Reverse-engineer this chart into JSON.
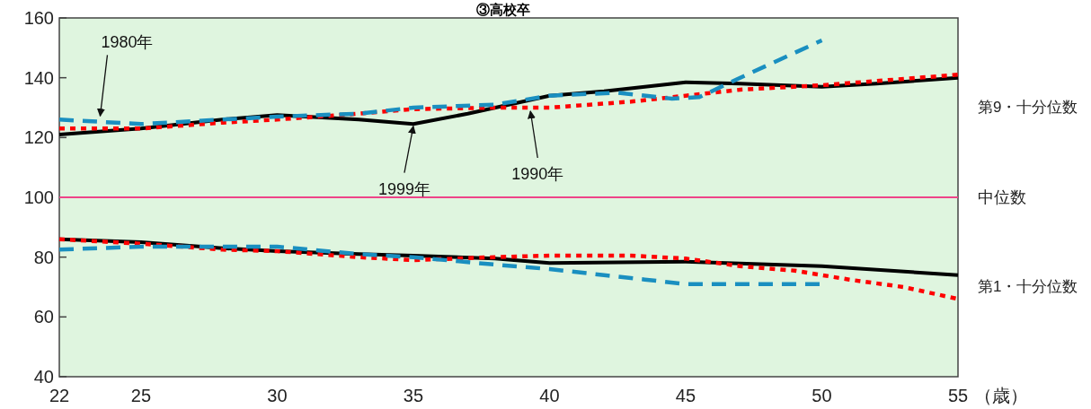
{
  "chart_data": {
    "type": "line",
    "title": "③高校卒",
    "xlabel": "（歳）",
    "xlim": [
      22,
      55
    ],
    "xticks": [
      22,
      25,
      30,
      35,
      40,
      45,
      50,
      55
    ],
    "ylim": [
      40,
      160
    ],
    "yticks": [
      40,
      60,
      80,
      100,
      120,
      140,
      160
    ],
    "series": [
      {
        "color": "#000000",
        "line_style": "solid",
        "x": [
          22,
          25,
          28,
          30,
          33,
          35,
          37,
          40,
          42,
          45,
          47,
          50,
          52,
          55
        ],
        "values": [
          121,
          123,
          126,
          127.5,
          126,
          124.5,
          128,
          134,
          135.5,
          138.5,
          138,
          137,
          138,
          140
        ]
      },
      {
        "color": "#ff0000",
        "line_style": "dotted",
        "x": [
          22,
          25,
          28,
          30,
          33,
          35,
          38,
          40,
          43,
          45,
          47,
          50,
          55
        ],
        "values": [
          123,
          123,
          125,
          126,
          128,
          129.5,
          130,
          130,
          132,
          134,
          136,
          137.5,
          141
        ]
      },
      {
        "color": "#1a8fc0",
        "line_style": "dashed",
        "x": [
          22,
          25,
          28,
          30,
          33,
          35,
          38,
          40,
          42.5,
          44.5,
          45.5,
          47,
          50
        ],
        "values": [
          126,
          124.5,
          126,
          127,
          128,
          130,
          131,
          134,
          135,
          133,
          133.5,
          140,
          152.5
        ]
      },
      {
        "color": "#000000",
        "line_style": "solid",
        "x": [
          22,
          25,
          28,
          30,
          33,
          35,
          38,
          40,
          45,
          50,
          55
        ],
        "values": [
          86,
          85,
          83,
          82,
          81,
          80.5,
          79.5,
          78,
          78.5,
          77,
          74
        ]
      },
      {
        "color": "#ff0000",
        "line_style": "dotted",
        "x": [
          22,
          25,
          28,
          30,
          33,
          35,
          38,
          40,
          43,
          45,
          47,
          49,
          51,
          53,
          55
        ],
        "values": [
          86,
          84.5,
          82.5,
          82,
          80,
          79,
          80,
          80.5,
          80.5,
          79.5,
          77,
          75.5,
          72.5,
          70,
          66
        ]
      },
      {
        "color": "#1a8fc0",
        "line_style": "dashed",
        "x": [
          22,
          25,
          28,
          30,
          33,
          35,
          38,
          40,
          42,
          43.5,
          45,
          50
        ],
        "values": [
          82.5,
          83.5,
          83.5,
          83.5,
          81,
          80,
          77.5,
          76,
          74,
          72.5,
          71,
          71
        ]
      }
    ],
    "ref_lines": [
      {
        "axis": "y",
        "value": 100,
        "label": "中位数",
        "color": "#ee4488"
      }
    ],
    "annotations": [
      {
        "text": "1980年",
        "x": 23.5,
        "y": 126
      },
      {
        "text": "1999年",
        "x": 35,
        "y": 125
      },
      {
        "text": "1990年",
        "x": 39.3,
        "y": 130
      },
      "第9・十分位数",
      "第1・十分位数"
    ]
  }
}
